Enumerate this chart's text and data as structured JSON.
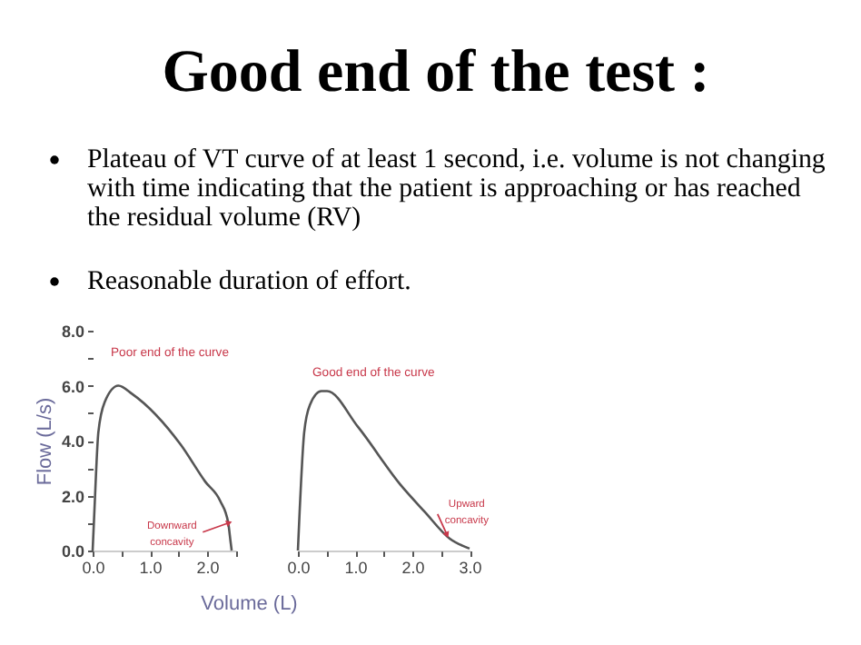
{
  "chart_data": [
    {
      "type": "other",
      "title": "Good end of the test :",
      "annotations": [
        "Plateau of VT curve of at least 1 second, i.e. volume is not changing with time indicating that the patient is approaching or has reached the residual volume (RV)",
        "Reasonable duration of effort."
      ]
    },
    {
      "type": "line",
      "xlabel": "Volume (L)",
      "ylabel": "Flow (L/s)",
      "x": [
        0,
        0.03,
        0.1,
        0.21,
        0.45,
        0.69,
        1.54,
        1.97,
        2.23,
        2.37,
        2.41,
        2.43
      ],
      "values": [
        0,
        1.4,
        4.3,
        5.4,
        6.0,
        5.7,
        3.85,
        2.5,
        1.8,
        1.0,
        0.33,
        0
      ],
      "color": "#555555",
      "xlim": [
        0,
        2.5
      ],
      "ylim": [
        0,
        8
      ],
      "xticks": [
        {
          "value": 0,
          "label": "0.0"
        },
        {
          "value": 0.5,
          "label": null
        },
        {
          "value": 1,
          "label": "1.0"
        },
        {
          "value": 1.5,
          "label": null
        },
        {
          "value": 2,
          "label": "2.0"
        },
        {
          "value": 2.5,
          "label": null
        }
      ],
      "yticks": [
        {
          "value": 0,
          "label": "0.0"
        },
        {
          "value": 1,
          "label": null
        },
        {
          "value": 2,
          "label": "2.0"
        },
        {
          "value": 3,
          "label": null
        },
        {
          "value": 4,
          "label": "4.0"
        },
        {
          "value": 5,
          "label": null
        },
        {
          "value": 6,
          "label": "6.0"
        },
        {
          "value": 7,
          "label": null
        },
        {
          "value": 8,
          "label": "8.0"
        }
      ],
      "grid": false,
      "annotations": [
        "Poor end of the curve",
        {
          "text": "Downward concavity",
          "x": 2.37,
          "y": 1.0
        }
      ]
    },
    {
      "type": "line",
      "x": [
        0,
        0.03,
        0.11,
        0.21,
        0.41,
        0.51,
        1.05,
        1.79,
        2.22,
        2.65,
        3.0
      ],
      "values": [
        0,
        1.4,
        4.3,
        5.3,
        5.8,
        5.8,
        4.5,
        2.4,
        1.4,
        0.44,
        0.07
      ],
      "color": "#555555",
      "xlim": [
        0,
        3
      ],
      "ylim": [
        0,
        8
      ],
      "xticks": [
        {
          "value": 0,
          "label": "0.0"
        },
        {
          "value": 0.5,
          "label": null
        },
        {
          "value": 1,
          "label": "1.0"
        },
        {
          "value": 1.5,
          "label": null
        },
        {
          "value": 2,
          "label": "2.0"
        },
        {
          "value": 2.5,
          "label": null
        },
        {
          "value": 3,
          "label": "3.0"
        }
      ],
      "tick_labels": "x",
      "grid": false,
      "annotations": [
        "Good end of the curve",
        {
          "text": "Upward concavity",
          "x": 2.6,
          "y": 0.6
        }
      ]
    }
  ]
}
